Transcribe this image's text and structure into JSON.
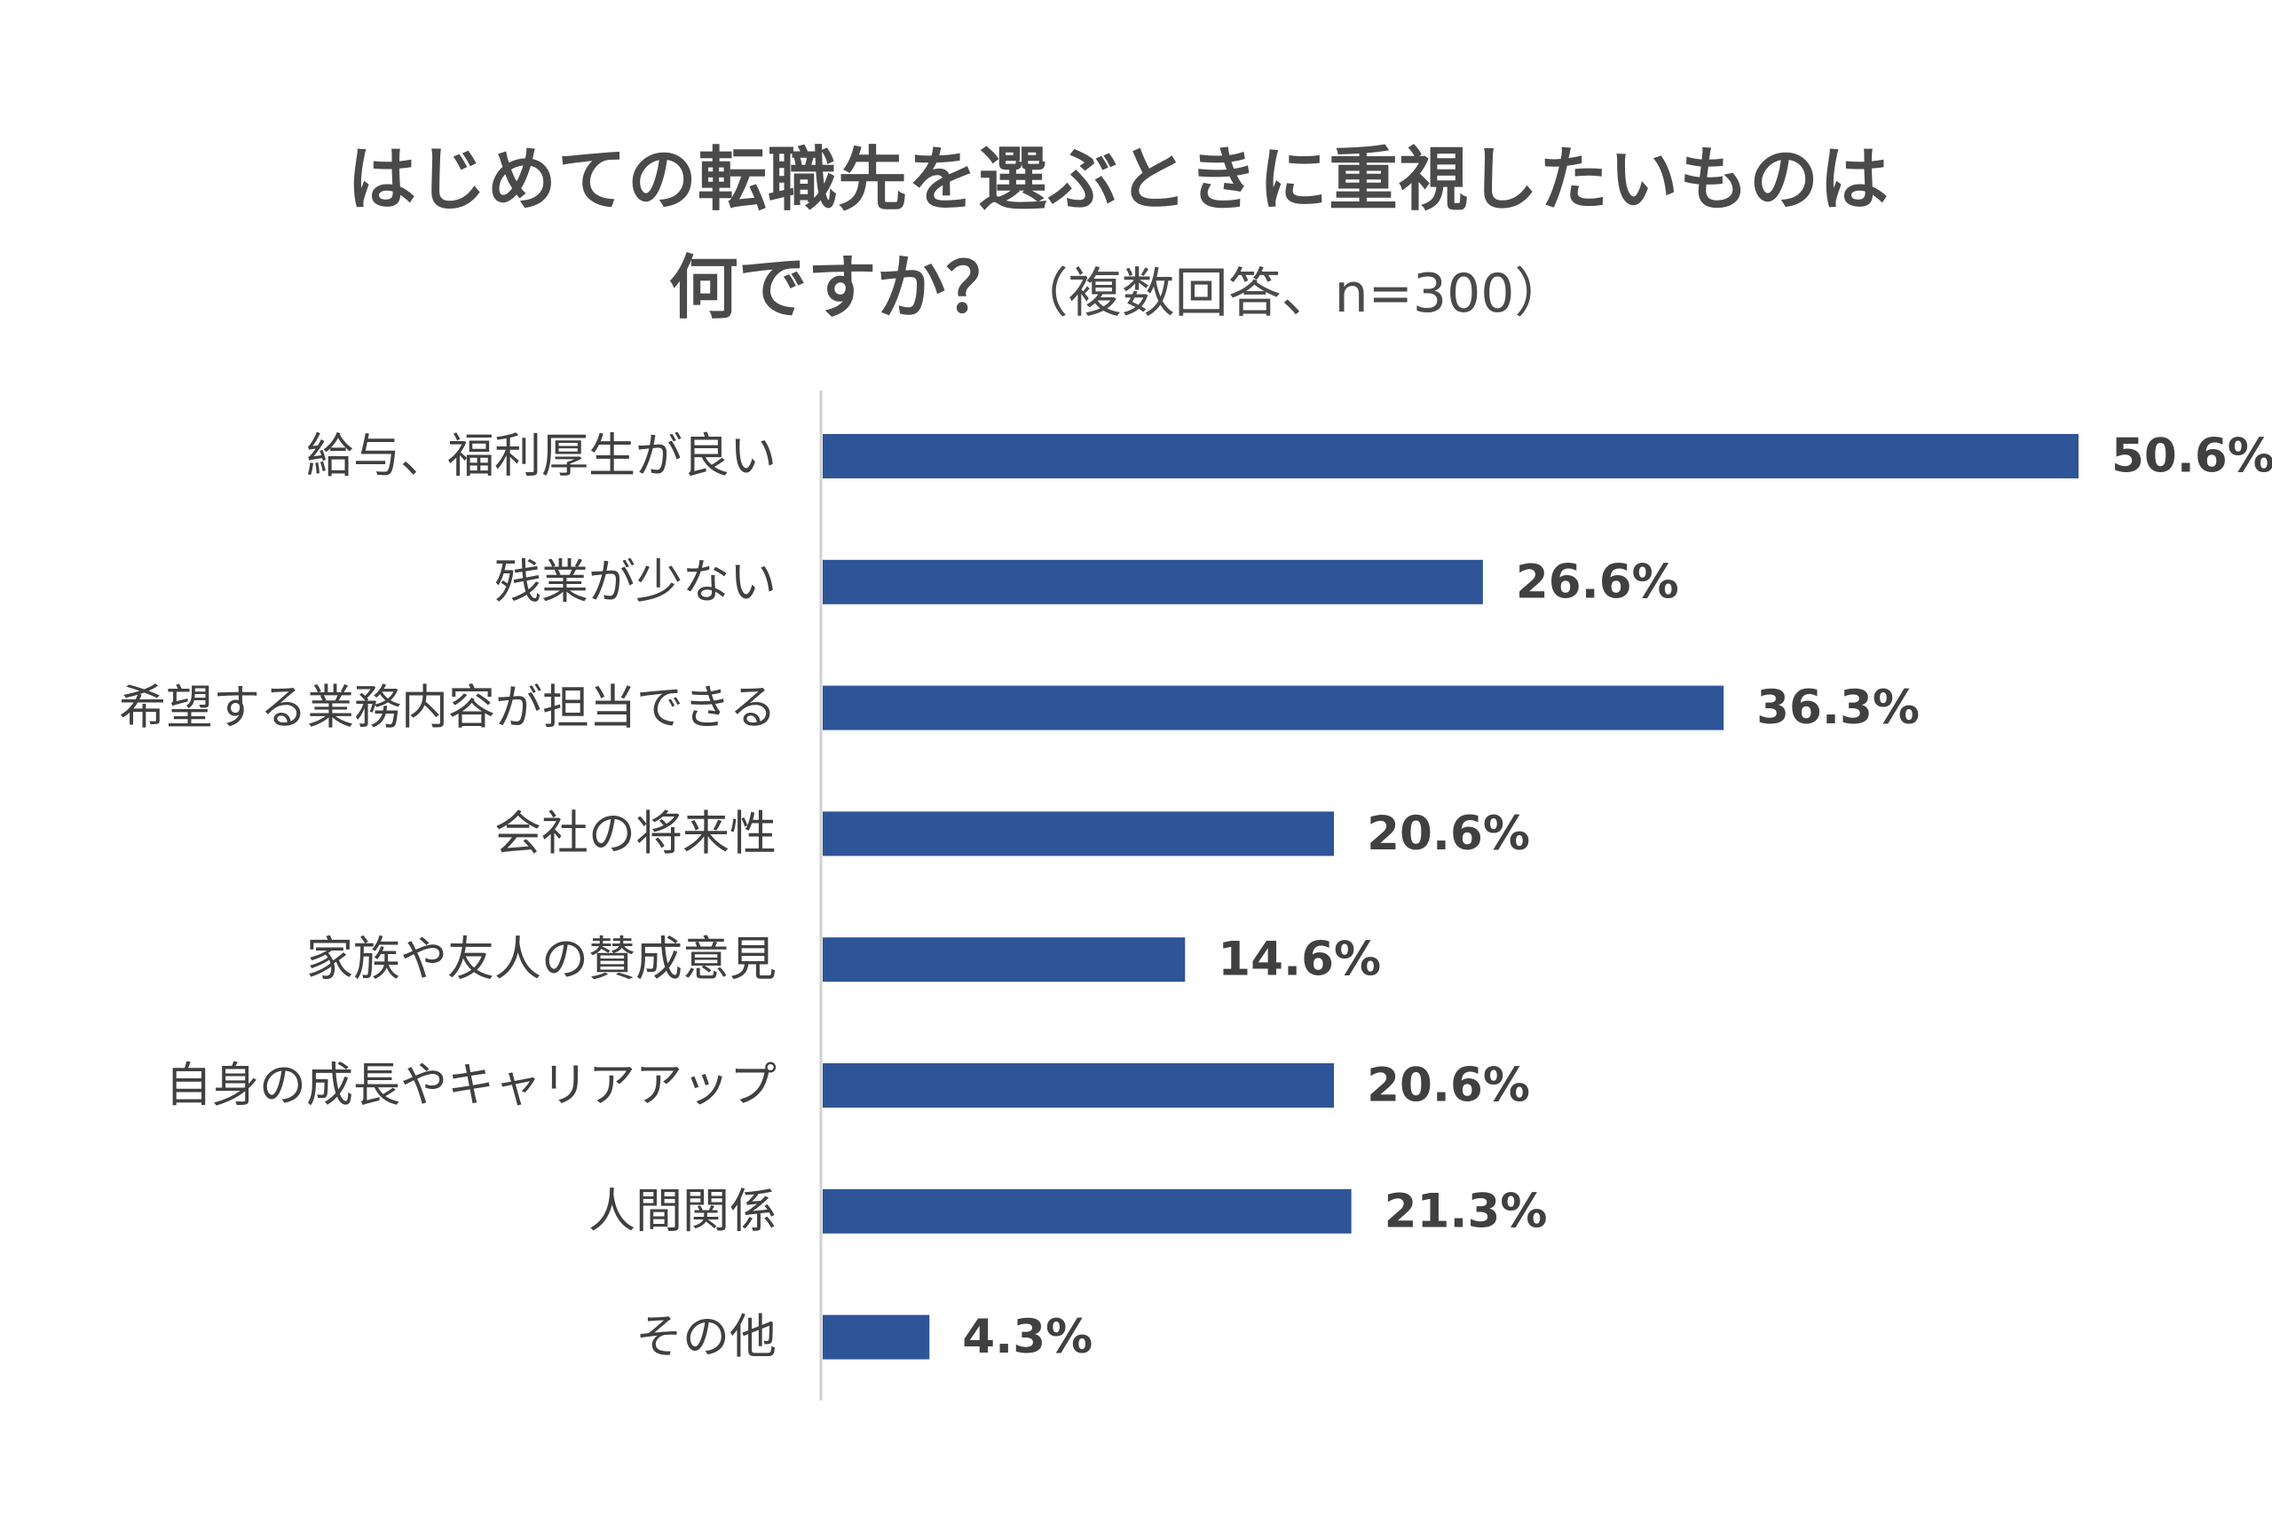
{
  "title": {
    "line1": "はじめての転職先を選ぶときに重視したいものは",
    "line2_main": "何ですか？",
    "line2_sub": "（複数回答、n=300）"
  },
  "colors": {
    "bar": "#2E5597",
    "axis": "#D0D0D0",
    "label_text": "#404040",
    "value_text": "#404040"
  },
  "chart_data": {
    "type": "bar",
    "orientation": "horizontal",
    "title": "はじめての転職先を選ぶときに重視したいものは何ですか？（複数回答、n=300）",
    "categories": [
      "給与、福利厚生が良い",
      "残業が少ない",
      "希望する業務内容が担当できる",
      "会社の将来性",
      "家族や友人の賛成意見",
      "自身の成長やキャリアアップ",
      "人間関係",
      "その他"
    ],
    "values": [
      50.6,
      26.6,
      36.3,
      20.6,
      14.6,
      20.6,
      21.3,
      4.3
    ],
    "value_labels": [
      "50.6%",
      "26.6%",
      "36.3%",
      "20.6%",
      "14.6%",
      "20.6%",
      "21.3%",
      "4.3%"
    ],
    "unit": "%",
    "xlim": [
      0,
      50.6
    ],
    "grid": false,
    "legend": "none"
  }
}
